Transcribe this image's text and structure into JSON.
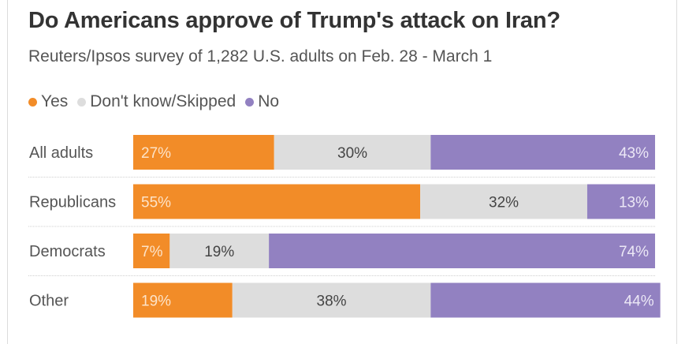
{
  "title": "Do Americans approve of Trump's attack on Iran?",
  "subtitle": "Reuters/Ipsos survey of 1,282 U.S. adults on Feb. 28 - March 1",
  "legend": [
    {
      "label": "Yes",
      "color": "#f28c28"
    },
    {
      "label": "Don't know/Skipped",
      "color": "#dddddd"
    },
    {
      "label": "No",
      "color": "#9281c1"
    }
  ],
  "chart_data": {
    "type": "bar",
    "orientation": "horizontal",
    "stacked": true,
    "title": "Do Americans approve of Trump's attack on Iran?",
    "subtitle": "Reuters/Ipsos survey of 1,282 U.S. adults on Feb. 28 - March 1",
    "categories": [
      "All adults",
      "Republicans",
      "Democrats",
      "Other"
    ],
    "series": [
      {
        "name": "Yes",
        "color": "#f28c28",
        "label_color": "#fde3c8",
        "values": [
          27,
          55,
          7,
          19
        ]
      },
      {
        "name": "Don't know/Skipped",
        "color": "#dddddd",
        "label_color": "#444444",
        "values": [
          30,
          32,
          19,
          38
        ]
      },
      {
        "name": "No",
        "color": "#9281c1",
        "label_color": "#ece8f6",
        "values": [
          43,
          13,
          74,
          44
        ]
      }
    ],
    "value_suffix": "%",
    "xlim": [
      0,
      100
    ],
    "xlabel": "",
    "ylabel": "",
    "grid": false,
    "legend_position": "top-left"
  }
}
